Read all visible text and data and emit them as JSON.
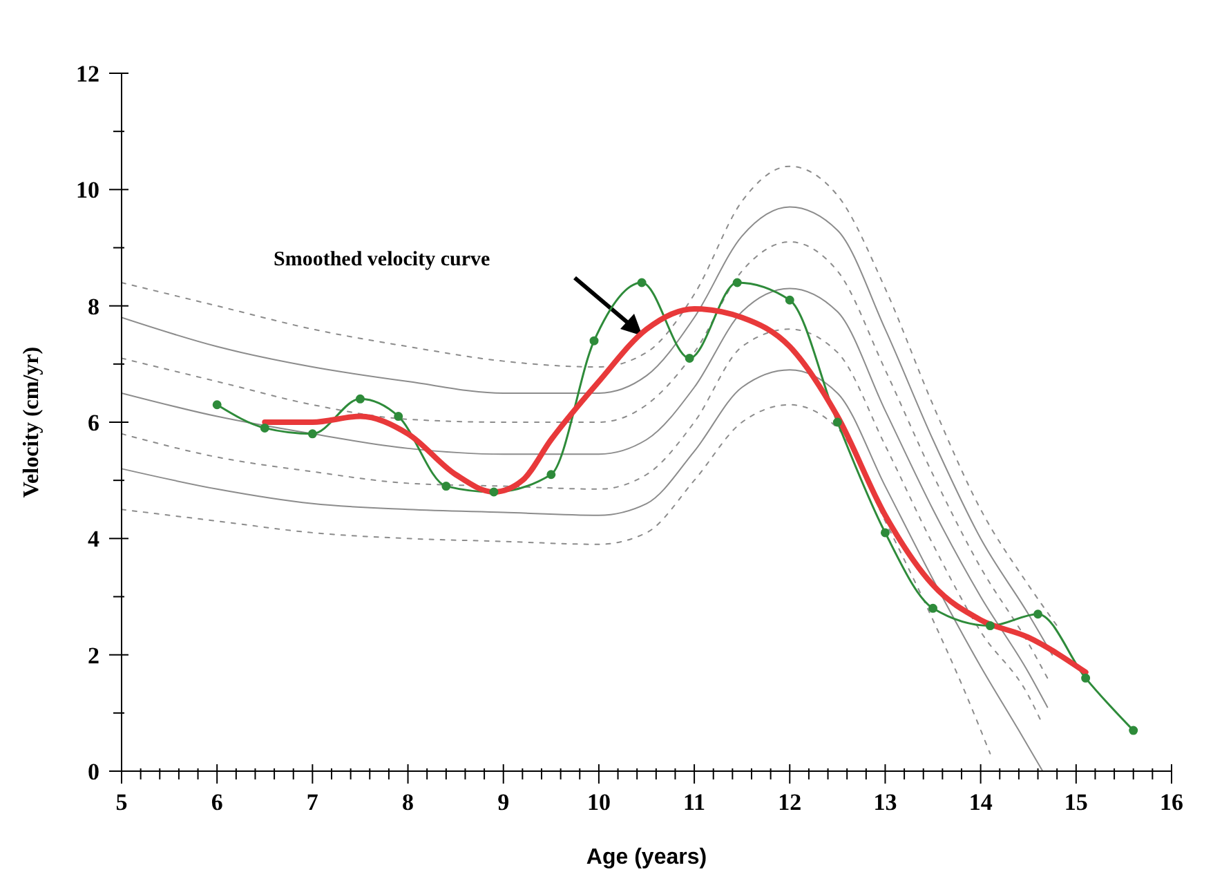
{
  "chart_data": {
    "type": "line",
    "xlabel": "Age (years)",
    "ylabel": "Velocity (cm/yr)",
    "xlim": [
      5,
      16
    ],
    "ylim": [
      0,
      12
    ],
    "xticks": [
      5,
      {
        "value": 5.2,
        "label": null
      },
      {
        "value": 5.4,
        "label": null
      },
      {
        "value": 5.6,
        "label": null
      },
      {
        "value": 5.8,
        "label": null
      },
      6,
      {
        "value": 6.2,
        "label": null
      },
      {
        "value": 6.4,
        "label": null
      },
      {
        "value": 6.6,
        "label": null
      },
      {
        "value": 6.8,
        "label": null
      },
      7,
      {
        "value": 7.2,
        "label": null
      },
      {
        "value": 7.4,
        "label": null
      },
      {
        "value": 7.6,
        "label": null
      },
      {
        "value": 7.8,
        "label": null
      },
      8,
      {
        "value": 8.2,
        "label": null
      },
      {
        "value": 8.4,
        "label": null
      },
      {
        "value": 8.6,
        "label": null
      },
      {
        "value": 8.8,
        "label": null
      },
      9,
      {
        "value": 9.2,
        "label": null
      },
      {
        "value": 9.4,
        "label": null
      },
      {
        "value": 9.6,
        "label": null
      },
      {
        "value": 9.8,
        "label": null
      },
      10,
      {
        "value": 10.2,
        "label": null
      },
      {
        "value": 10.4,
        "label": null
      },
      {
        "value": 10.6,
        "label": null
      },
      {
        "value": 10.8,
        "label": null
      },
      11,
      {
        "value": 11.2,
        "label": null
      },
      {
        "value": 11.4,
        "label": null
      },
      {
        "value": 11.6,
        "label": null
      },
      {
        "value": 11.8,
        "label": null
      },
      12,
      {
        "value": 12.2,
        "label": null
      },
      {
        "value": 12.4,
        "label": null
      },
      {
        "value": 12.6,
        "label": null
      },
      {
        "value": 12.8,
        "label": null
      },
      13,
      {
        "value": 13.2,
        "label": null
      },
      {
        "value": 13.4,
        "label": null
      },
      {
        "value": 13.6,
        "label": null
      },
      {
        "value": 13.8,
        "label": null
      },
      14,
      {
        "value": 14.2,
        "label": null
      },
      {
        "value": 14.4,
        "label": null
      },
      {
        "value": 14.6,
        "label": null
      },
      {
        "value": 14.8,
        "label": null
      },
      15,
      {
        "value": 15.2,
        "label": null
      },
      {
        "value": 15.4,
        "label": null
      },
      {
        "value": 15.6,
        "label": null
      },
      {
        "value": 15.8,
        "label": null
      },
      16
    ],
    "yticks": [
      0,
      {
        "value": 1,
        "label": null
      },
      2,
      {
        "value": 3,
        "label": null
      },
      4,
      {
        "value": 5,
        "label": null
      },
      6,
      {
        "value": 7,
        "label": null
      },
      8,
      {
        "value": 9,
        "label": null
      },
      10,
      {
        "value": 11,
        "label": null
      },
      12
    ],
    "annotations": [
      "Smoothed velocity curve"
    ],
    "series": [
      {
        "color": "#8c8c8c",
        "line_style": "dotted",
        "marker": "none",
        "x": [
          5,
          6,
          7,
          8,
          9,
          10,
          10.5,
          11,
          11.5,
          12,
          12.5,
          13,
          13.5,
          14,
          14.5,
          14.8
        ],
        "values": [
          8.4,
          8.0,
          7.6,
          7.3,
          7.05,
          6.95,
          7.2,
          8.2,
          9.8,
          10.4,
          9.9,
          8.3,
          6.3,
          4.5,
          3.2,
          2.5
        ]
      },
      {
        "color": "#8c8c8c",
        "line_style": "solid",
        "marker": "none",
        "x": [
          5,
          6,
          7,
          8,
          9,
          10,
          10.5,
          11,
          11.5,
          12,
          12.5,
          13,
          13.5,
          14,
          14.5,
          14.75
        ],
        "values": [
          7.8,
          7.3,
          6.95,
          6.7,
          6.5,
          6.5,
          6.8,
          7.8,
          9.2,
          9.7,
          9.3,
          7.6,
          5.7,
          4.0,
          2.7,
          2.0
        ]
      },
      {
        "color": "#8c8c8c",
        "line_style": "dotted",
        "marker": "none",
        "x": [
          5,
          6,
          7,
          8,
          9,
          10,
          10.5,
          11,
          11.5,
          12,
          12.5,
          13,
          13.5,
          14,
          14.5,
          14.7
        ],
        "values": [
          7.1,
          6.7,
          6.3,
          6.05,
          6.0,
          6.0,
          6.3,
          7.2,
          8.6,
          9.1,
          8.6,
          6.9,
          5.1,
          3.5,
          2.2,
          1.6
        ]
      },
      {
        "color": "#8c8c8c",
        "line_style": "solid",
        "marker": "none",
        "x": [
          5,
          6,
          7,
          8,
          9,
          10,
          10.5,
          11,
          11.5,
          12,
          12.5,
          13,
          13.5,
          14,
          14.5,
          14.7
        ],
        "values": [
          6.5,
          6.1,
          5.8,
          5.55,
          5.45,
          5.45,
          5.7,
          6.6,
          7.9,
          8.3,
          7.9,
          6.2,
          4.5,
          3.0,
          1.7,
          1.1
        ]
      },
      {
        "color": "#8c8c8c",
        "line_style": "dotted",
        "marker": "none",
        "x": [
          5,
          6,
          7,
          8,
          9,
          10,
          10.5,
          11,
          11.5,
          12,
          12.5,
          13,
          13.5,
          14,
          14.5,
          14.65
        ],
        "values": [
          5.8,
          5.4,
          5.15,
          4.95,
          4.9,
          4.85,
          5.1,
          6.0,
          7.3,
          7.6,
          7.2,
          5.6,
          3.9,
          2.4,
          1.3,
          0.8
        ]
      },
      {
        "color": "#8c8c8c",
        "line_style": "solid",
        "marker": "none",
        "x": [
          5,
          6,
          7,
          8,
          9,
          10,
          10.5,
          11,
          11.5,
          12,
          12.5,
          13,
          13.5,
          14,
          14.4,
          14.65
        ],
        "values": [
          5.2,
          4.85,
          4.6,
          4.5,
          4.45,
          4.4,
          4.6,
          5.5,
          6.6,
          6.9,
          6.5,
          4.9,
          3.3,
          1.8,
          0.7,
          0
        ]
      },
      {
        "color": "#8c8c8c",
        "line_style": "dotted",
        "marker": "none",
        "x": [
          5,
          6,
          7,
          8,
          9,
          10,
          10.5,
          11,
          11.5,
          12,
          12.5,
          13,
          13.5,
          13.8,
          14.1
        ],
        "values": [
          4.5,
          4.3,
          4.1,
          4.0,
          3.95,
          3.9,
          4.1,
          5.0,
          6.0,
          6.3,
          5.9,
          4.3,
          2.6,
          1.5,
          0.3
        ]
      },
      {
        "color": "#2e8b3a",
        "line_style": "solid",
        "marker": "circle",
        "x": [
          6.0,
          6.5,
          7.0,
          7.5,
          7.9,
          8.4,
          8.9,
          9.5,
          9.95,
          10.45,
          10.95,
          11.45,
          12.0,
          12.5,
          13.0,
          13.5,
          14.1,
          14.6,
          15.1,
          15.6
        ],
        "values": [
          6.3,
          5.9,
          5.8,
          6.4,
          6.1,
          4.9,
          4.8,
          5.1,
          7.4,
          8.4,
          7.1,
          8.4,
          8.1,
          6.0,
          4.1,
          2.8,
          2.5,
          2.7,
          1.6,
          0.7
        ]
      },
      {
        "color": "#e8393a",
        "line_style": "solid",
        "marker": "none",
        "x": [
          6.5,
          7.0,
          7.5,
          8.0,
          8.5,
          8.9,
          9.2,
          9.5,
          10.0,
          10.5,
          11.0,
          11.5,
          12.0,
          12.5,
          13.0,
          13.5,
          14.0,
          14.5,
          15.1
        ],
        "values": [
          6.0,
          6.0,
          6.1,
          5.8,
          5.1,
          4.8,
          5.0,
          5.7,
          6.7,
          7.6,
          7.95,
          7.8,
          7.3,
          6.1,
          4.4,
          3.2,
          2.6,
          2.3,
          1.7
        ]
      }
    ]
  }
}
